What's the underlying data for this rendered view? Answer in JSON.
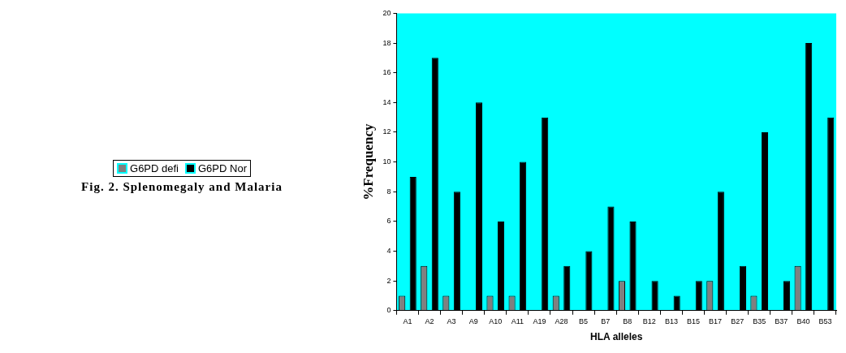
{
  "chart_data": {
    "type": "bar",
    "title": "Fig. 2. Splenomegaly and Malaria",
    "xlabel": "HLA alleles",
    "ylabel": "%Frequency",
    "categories": [
      "A1",
      "A2",
      "A3",
      "A9",
      "A10",
      "A11",
      "A19",
      "A28",
      "B5",
      "B7",
      "B8",
      "B12",
      "B13",
      "B15",
      "B17",
      "B27",
      "B35",
      "B37",
      "B40",
      "B53"
    ],
    "series": [
      {
        "name": "G6PD defi",
        "color": "#808080",
        "values": [
          1,
          3,
          1,
          0,
          1,
          1,
          0,
          1,
          0,
          0,
          2,
          0,
          0,
          0,
          2,
          0,
          1,
          0,
          3,
          null
        ]
      },
      {
        "name": "G6PD Nor",
        "color": "#000000",
        "values": [
          9,
          17,
          8,
          14,
          6,
          10,
          13,
          3,
          4,
          7,
          6,
          2,
          1,
          2,
          8,
          3,
          12,
          2,
          18,
          13
        ]
      }
    ],
    "ylim": [
      0,
      20
    ],
    "yticks": [
      0,
      2,
      4,
      6,
      8,
      10,
      12,
      14,
      16,
      18,
      20
    ],
    "grid": false,
    "legend": "left"
  }
}
